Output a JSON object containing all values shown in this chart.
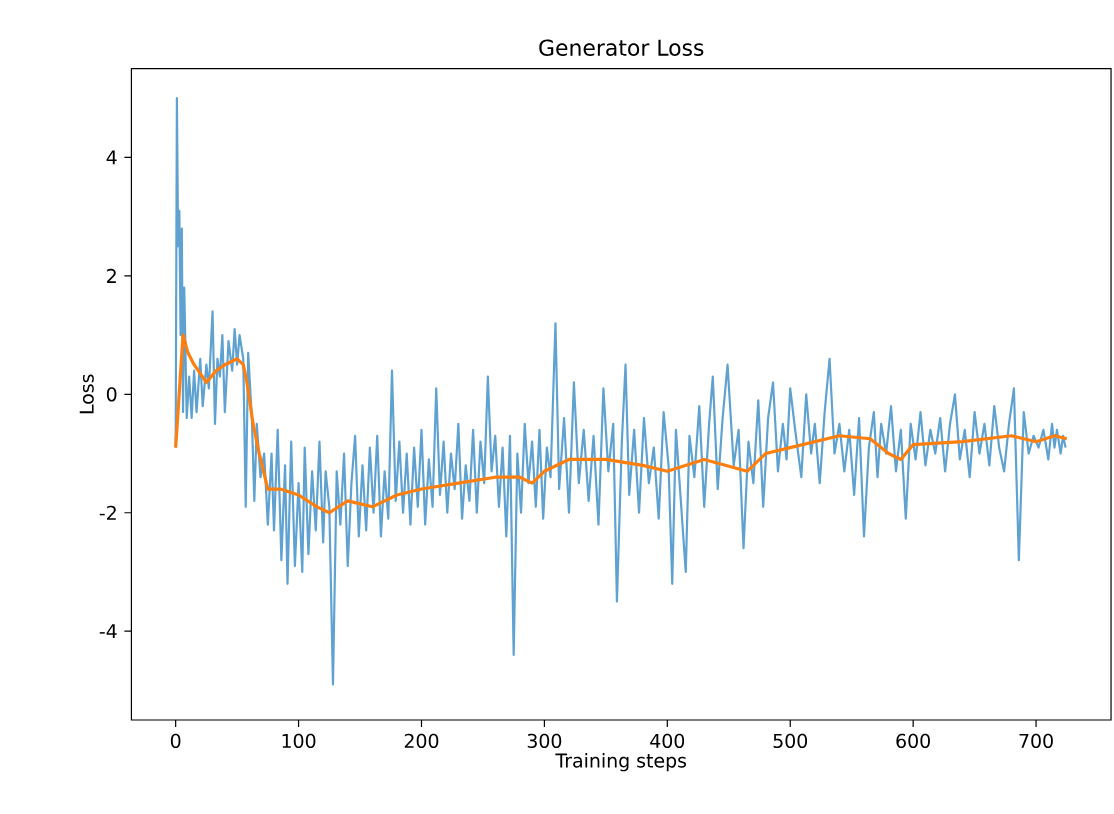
{
  "chart_data": {
    "type": "line",
    "title": "Generator Loss",
    "xlabel": "Training steps",
    "ylabel": "Loss",
    "xlim": [
      -36,
      761
    ],
    "ylim": [
      -5.5,
      5.5
    ],
    "xticks": [
      0,
      100,
      200,
      300,
      400,
      500,
      600,
      700
    ],
    "yticks": [
      -4,
      -2,
      0,
      2,
      4
    ],
    "grid": false,
    "series": [
      {
        "color": "#5fa2d2",
        "x": [
          0,
          1,
          2,
          3,
          4,
          5,
          6,
          7,
          9,
          11,
          13,
          15,
          17,
          20,
          22,
          25,
          27,
          30,
          32,
          34,
          36,
          38,
          40,
          43,
          46,
          48,
          50,
          52,
          55,
          57,
          59,
          62,
          64,
          66,
          69,
          72,
          75,
          78,
          80,
          83,
          86,
          89,
          91,
          94,
          97,
          100,
          103,
          105,
          108,
          111,
          114,
          117,
          120,
          122,
          125,
          128,
          131,
          134,
          137,
          140,
          143,
          146,
          149,
          152,
          155,
          158,
          161,
          164,
          167,
          170,
          173,
          176,
          179,
          182,
          185,
          188,
          191,
          194,
          197,
          200,
          203,
          206,
          209,
          212,
          215,
          218,
          221,
          224,
          227,
          230,
          233,
          236,
          239,
          242,
          245,
          248,
          251,
          254,
          257,
          260,
          263,
          266,
          269,
          272,
          275,
          278,
          281,
          284,
          287,
          290,
          293,
          296,
          299,
          302,
          305,
          309,
          312,
          316,
          320,
          324,
          328,
          332,
          336,
          340,
          344,
          348,
          352,
          356,
          359,
          363,
          366,
          369,
          373,
          377,
          381,
          385,
          389,
          393,
          397,
          401,
          404,
          407,
          411,
          415,
          418,
          422,
          426,
          430,
          434,
          437,
          441,
          445,
          449,
          454,
          458,
          462,
          466,
          470,
          474,
          478,
          482,
          486,
          490,
          494,
          497,
          500,
          504,
          509,
          513,
          517,
          520,
          524,
          528,
          532,
          536,
          540,
          544,
          548,
          552,
          556,
          560,
          564,
          568,
          571,
          574,
          578,
          582,
          586,
          590,
          594,
          598,
          602,
          606,
          610,
          614,
          618,
          622,
          626,
          630,
          634,
          638,
          642,
          646,
          650,
          654,
          658,
          662,
          666,
          670,
          674,
          678,
          682,
          686,
          690,
          694,
          698,
          702,
          706,
          710,
          713,
          715,
          717,
          720,
          722,
          724
        ],
        "values": [
          -0.9,
          5.0,
          2.5,
          3.1,
          1.0,
          2.8,
          -0.3,
          1.8,
          -0.4,
          0.3,
          -0.4,
          0.4,
          -0.3,
          0.6,
          -0.2,
          0.5,
          0.1,
          1.4,
          -0.5,
          0.6,
          0.3,
          1.0,
          -0.3,
          0.9,
          0.4,
          1.1,
          0.5,
          1.0,
          0.6,
          -1.9,
          0.7,
          -0.4,
          -1.8,
          -0.5,
          -1.4,
          -1.0,
          -2.2,
          -1.0,
          -2.3,
          -0.6,
          -2.8,
          -1.2,
          -3.2,
          -0.8,
          -2.9,
          -1.5,
          -3.0,
          -0.9,
          -2.7,
          -1.3,
          -2.3,
          -0.8,
          -2.5,
          -1.3,
          -1.9,
          -4.9,
          -1.3,
          -2.2,
          -1.0,
          -2.9,
          -1.5,
          -0.7,
          -2.4,
          -1.2,
          -2.3,
          -0.9,
          -2.0,
          -0.7,
          -2.4,
          -1.3,
          -2.1,
          0.4,
          -1.8,
          -0.8,
          -2.0,
          -1.0,
          -2.2,
          -0.9,
          -1.9,
          -0.6,
          -2.2,
          -1.1,
          -1.9,
          0.1,
          -1.7,
          -0.8,
          -2.0,
          -1.0,
          -1.6,
          -0.5,
          -2.1,
          -1.2,
          -1.8,
          -0.6,
          -2.0,
          -0.8,
          -1.5,
          0.3,
          -1.3,
          -0.7,
          -1.9,
          -0.9,
          -2.4,
          -0.7,
          -4.4,
          -1.0,
          -2.0,
          -0.5,
          -1.5,
          -0.8,
          -1.9,
          -0.6,
          -2.1,
          -0.9,
          -1.4,
          1.2,
          -1.6,
          -0.4,
          -2.0,
          0.2,
          -1.5,
          -0.6,
          -1.8,
          -0.7,
          -2.2,
          0.1,
          -1.3,
          -0.5,
          -3.5,
          -0.8,
          0.5,
          -1.7,
          -0.6,
          -2.0,
          -0.4,
          -1.5,
          -0.9,
          -2.1,
          -0.3,
          -1.2,
          -3.2,
          -0.6,
          -1.8,
          -3.0,
          -0.7,
          -1.4,
          -0.2,
          -1.9,
          -0.5,
          0.3,
          -1.6,
          -0.4,
          0.5,
          -1.2,
          -0.6,
          -2.6,
          -0.8,
          -1.5,
          -0.1,
          -1.9,
          -0.4,
          0.2,
          -1.3,
          -0.5,
          -1.1,
          0.1,
          -0.6,
          -1.4,
          0.0,
          -1.0,
          -0.5,
          -1.5,
          -0.3,
          0.6,
          -1.0,
          -0.5,
          -1.3,
          -0.6,
          -1.7,
          -0.4,
          -2.4,
          -0.9,
          -0.3,
          -1.4,
          -0.5,
          -1.0,
          -0.2,
          -1.3,
          -0.6,
          -2.1,
          -0.5,
          -1.1,
          -0.3,
          -1.2,
          -0.6,
          -1.0,
          -0.4,
          -1.3,
          -0.5,
          0.0,
          -1.1,
          -0.6,
          -1.4,
          -0.3,
          -1.0,
          -0.5,
          -1.2,
          -0.2,
          -0.9,
          -1.3,
          -0.5,
          0.1,
          -2.8,
          -0.3,
          -1.0,
          -0.7,
          -0.9,
          -0.6,
          -1.1,
          -0.5,
          -0.9,
          -0.6,
          -1.0,
          -0.7,
          -0.9
        ]
      },
      {
        "color": "#ff7f0e",
        "x": [
          0,
          6,
          10,
          15,
          25,
          33,
          40,
          50,
          55,
          58,
          63,
          68,
          75,
          85,
          100,
          115,
          125,
          140,
          160,
          180,
          200,
          230,
          260,
          280,
          290,
          300,
          320,
          350,
          380,
          400,
          430,
          465,
          480,
          500,
          540,
          565,
          580,
          590,
          600,
          640,
          680,
          700,
          715,
          725
        ],
        "values": [
          -0.9,
          1.0,
          0.7,
          0.5,
          0.2,
          0.4,
          0.5,
          0.6,
          0.5,
          0.2,
          -0.5,
          -1.0,
          -1.6,
          -1.6,
          -1.7,
          -1.9,
          -2.0,
          -1.8,
          -1.9,
          -1.7,
          -1.6,
          -1.5,
          -1.4,
          -1.4,
          -1.5,
          -1.3,
          -1.1,
          -1.1,
          -1.2,
          -1.3,
          -1.1,
          -1.3,
          -1.0,
          -0.9,
          -0.7,
          -0.75,
          -1.0,
          -1.1,
          -0.85,
          -0.8,
          -0.7,
          -0.8,
          -0.7,
          -0.75
        ]
      }
    ]
  }
}
